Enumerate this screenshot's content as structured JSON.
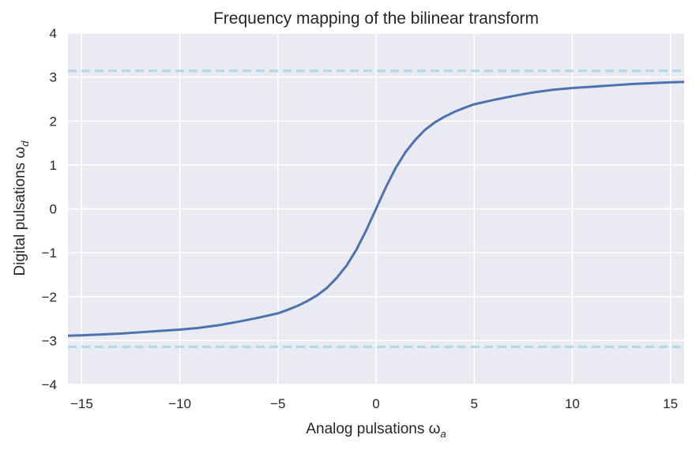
{
  "chart_data": {
    "type": "line",
    "title": "Frequency mapping of the bilinear transform",
    "xlabel": "Analog pulsations ω",
    "xlabel_subscript": "a",
    "ylabel": "Digital pulsations ω",
    "ylabel_subscript": "d",
    "xlim": [
      -15.7,
      15.7
    ],
    "ylim": [
      -4,
      4
    ],
    "xticks": [
      -15,
      -10,
      -5,
      0,
      5,
      10,
      15
    ],
    "xtick_labels": [
      "−15",
      "−10",
      "−5",
      "0",
      "5",
      "10",
      "15"
    ],
    "yticks": [
      -4,
      -3,
      -2,
      -1,
      0,
      1,
      2,
      3,
      4
    ],
    "ytick_labels": [
      "−4",
      "−3",
      "−2",
      "−1",
      "0",
      "1",
      "2",
      "3",
      "4"
    ],
    "grid": true,
    "series": [
      {
        "color": "#4c72b0",
        "style": "solid",
        "x": [
          -15.7,
          -15,
          -14,
          -13,
          -12,
          -11,
          -10,
          -9,
          -8,
          -7,
          -6,
          -5,
          -4.5,
          -4,
          -3.5,
          -3,
          -2.5,
          -2,
          -1.5,
          -1,
          -0.5,
          0,
          0.5,
          1,
          1.5,
          2,
          2.5,
          3,
          3.5,
          4,
          4.5,
          5,
          6,
          7,
          8,
          9,
          10,
          11,
          12,
          13,
          14,
          15,
          15.7
        ],
        "y": [
          -2.89,
          -2.88,
          -2.86,
          -2.84,
          -2.81,
          -2.78,
          -2.75,
          -2.71,
          -2.65,
          -2.57,
          -2.48,
          -2.38,
          -2.3,
          -2.21,
          -2.1,
          -1.97,
          -1.8,
          -1.57,
          -1.29,
          -0.93,
          -0.49,
          0.0,
          0.49,
          0.93,
          1.29,
          1.57,
          1.8,
          1.97,
          2.1,
          2.21,
          2.3,
          2.38,
          2.48,
          2.57,
          2.65,
          2.71,
          2.75,
          2.78,
          2.81,
          2.84,
          2.86,
          2.88,
          2.89
        ]
      },
      {
        "color": "#add8e6",
        "style": "dashed",
        "x": [
          -15.7,
          15.7
        ],
        "y": [
          3.1416,
          3.1416
        ]
      },
      {
        "color": "#add8e6",
        "style": "dashed",
        "x": [
          -15.7,
          15.7
        ],
        "y": [
          -3.1416,
          -3.1416
        ]
      }
    ],
    "colors": {
      "background": "#eaeaf2",
      "grid": "#ffffff",
      "text": "#262626"
    }
  }
}
